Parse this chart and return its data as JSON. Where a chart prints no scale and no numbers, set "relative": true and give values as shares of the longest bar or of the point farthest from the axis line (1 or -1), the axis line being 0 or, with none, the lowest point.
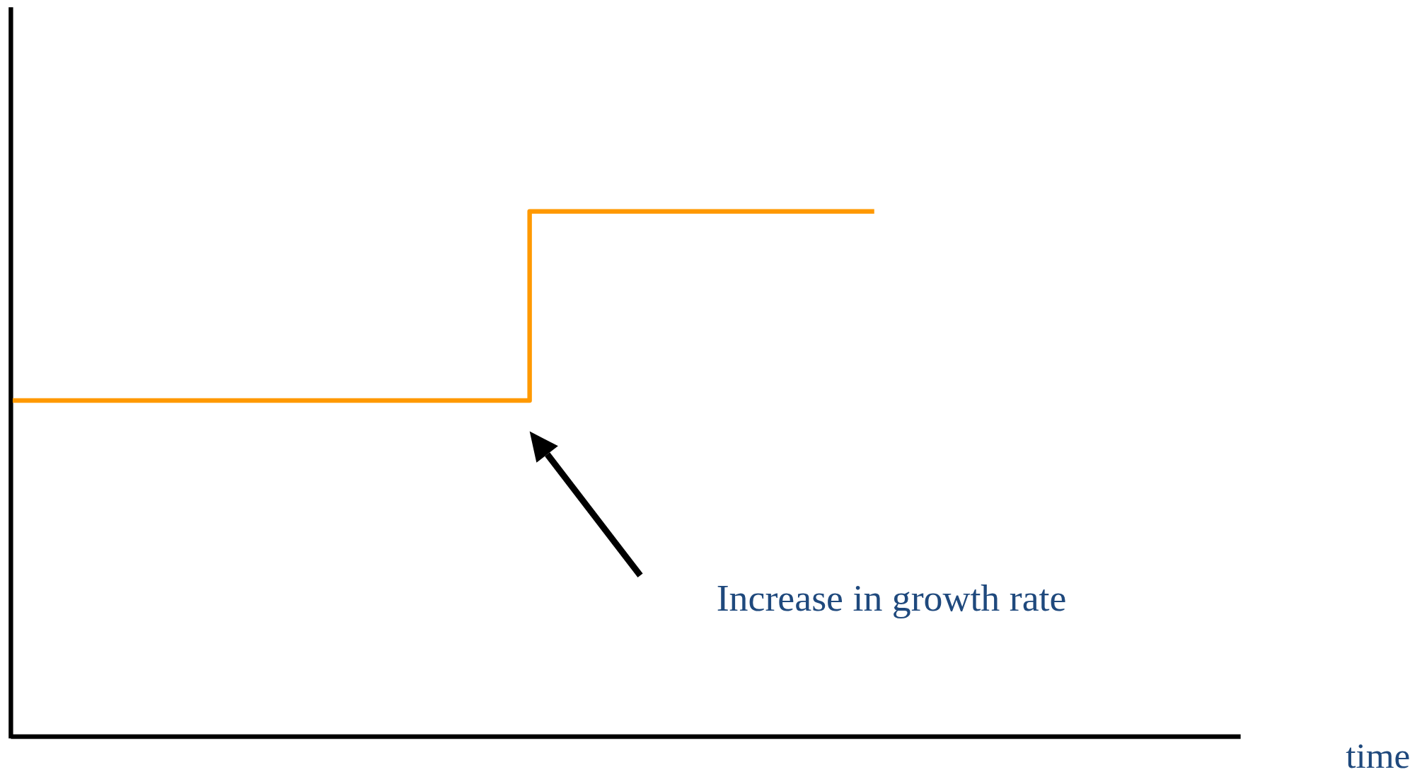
{
  "chart_data": {
    "type": "step",
    "relative": true,
    "xlabel": "time",
    "categories": [
      null,
      null,
      null,
      null,
      null,
      null,
      null,
      null
    ],
    "series": [
      {
        "color": "#ff9900",
        "values": [
          0.64,
          0.64,
          0.64,
          1,
          1,
          1,
          null,
          null
        ]
      }
    ],
    "annotations": [
      "Increase in growth rate"
    ]
  }
}
